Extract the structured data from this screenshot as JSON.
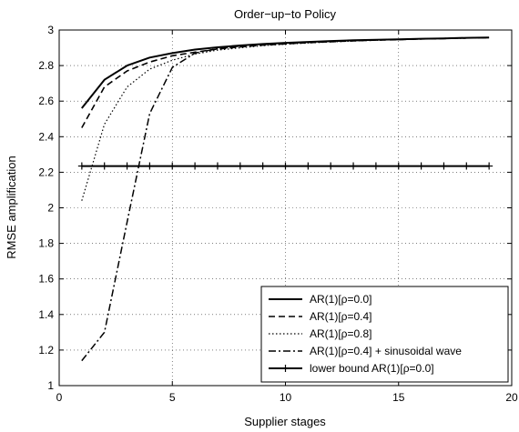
{
  "chart_data": {
    "type": "line",
    "title": "Order−up−to Policy",
    "xlabel": "Supplier stages",
    "ylabel": "RMSE amplification",
    "xlim": [
      0,
      20
    ],
    "ylim": [
      1,
      3
    ],
    "xticks": [
      0,
      5,
      10,
      15,
      20
    ],
    "yticks": [
      1,
      1.2,
      1.4,
      1.6,
      1.8,
      2,
      2.2,
      2.4,
      2.6,
      2.8,
      3
    ],
    "grid": "dotted",
    "legend_position": "bottom-right",
    "series": [
      {
        "name": "AR(1)[ρ=0.0]",
        "style": "solid",
        "x": [
          1,
          2,
          3,
          4,
          5,
          6,
          7,
          8,
          9,
          10,
          11,
          12,
          13,
          14,
          15,
          16,
          17,
          18,
          19
        ],
        "y": [
          2.56,
          2.72,
          2.8,
          2.845,
          2.87,
          2.89,
          2.903,
          2.913,
          2.921,
          2.928,
          2.933,
          2.938,
          2.942,
          2.945,
          2.948,
          2.951,
          2.953,
          2.956,
          2.958
        ]
      },
      {
        "name": "AR(1)[ρ=0.4]",
        "style": "dashed",
        "x": [
          1,
          2,
          3,
          4,
          5,
          6,
          7,
          8,
          9,
          10,
          11,
          12,
          13,
          14,
          15,
          16,
          17,
          18,
          19
        ],
        "y": [
          2.45,
          2.68,
          2.77,
          2.82,
          2.855,
          2.875,
          2.893,
          2.905,
          2.915,
          2.922,
          2.929,
          2.934,
          2.939,
          2.943,
          2.946,
          2.95,
          2.952,
          2.955,
          2.957
        ]
      },
      {
        "name": "AR(1)[ρ=0.8]",
        "style": "dotted",
        "x": [
          1,
          2,
          3,
          4,
          5,
          6,
          7,
          8,
          9,
          10,
          11,
          12,
          13,
          14,
          15,
          16,
          17,
          18,
          19
        ],
        "y": [
          2.04,
          2.47,
          2.68,
          2.78,
          2.83,
          2.865,
          2.887,
          2.9,
          2.912,
          2.92,
          2.927,
          2.933,
          2.938,
          2.942,
          2.946,
          2.949,
          2.952,
          2.955,
          2.957
        ]
      },
      {
        "name": "AR(1)[ρ=0.4] + sinusoidal wave",
        "style": "dashdot",
        "x": [
          1,
          2,
          3,
          4,
          5,
          6,
          7,
          8,
          9,
          10,
          11,
          12,
          13,
          14,
          15,
          16,
          17,
          18,
          19
        ],
        "y": [
          1.14,
          1.3,
          1.92,
          2.53,
          2.79,
          2.87,
          2.895,
          2.91,
          2.918,
          2.925,
          2.931,
          2.936,
          2.94,
          2.944,
          2.947,
          2.95,
          2.953,
          2.955,
          2.957
        ]
      },
      {
        "name": "lower bound AR(1)[ρ=0.0]",
        "style": "solid-plus",
        "x": [
          1,
          2,
          3,
          4,
          5,
          6,
          7,
          8,
          9,
          10,
          11,
          12,
          13,
          14,
          15,
          16,
          17,
          18,
          19
        ],
        "y": [
          2.235,
          2.235,
          2.235,
          2.235,
          2.235,
          2.235,
          2.235,
          2.235,
          2.235,
          2.235,
          2.235,
          2.235,
          2.235,
          2.235,
          2.235,
          2.235,
          2.235,
          2.235,
          2.235
        ]
      }
    ]
  }
}
